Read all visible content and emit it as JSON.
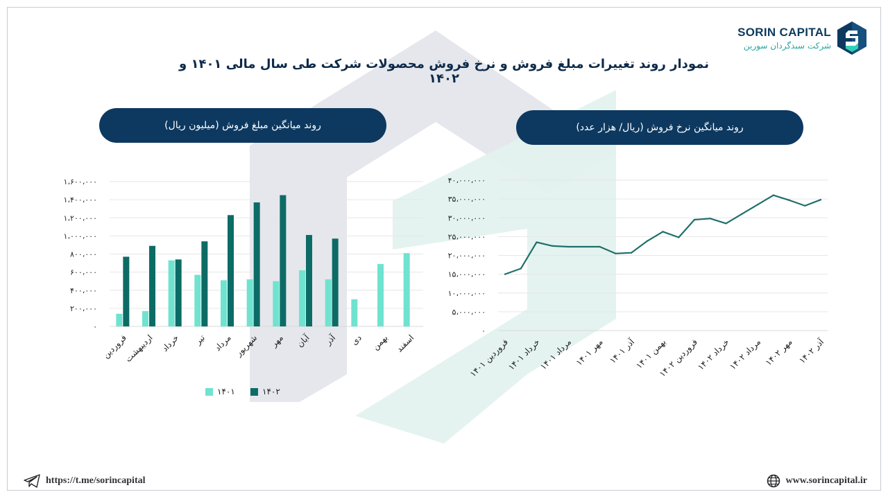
{
  "brand": {
    "name_en": "SORIN CAPITAL",
    "name_fa": "شرکت سبدگردان سورین"
  },
  "title": "نمودار روند تغییرات مبلغ فروش و نرخ فروش محصولات شرکت طی سال مالی ۱۴۰۱ و ۱۴۰۲",
  "footer": {
    "telegram": "https://t.me/sorincapital",
    "website": "www.sorincapital.ir"
  },
  "colors": {
    "navy": "#0d3960",
    "series_1401": "#6fe3cf",
    "series_1402": "#0d6b66",
    "line": "#1f6f6b",
    "watermark_gray": "#e2e4ea",
    "watermark_green": "#e3f2ee"
  },
  "icons": {
    "footer_left": "telegram-icon",
    "footer_right": "globe-icon"
  },
  "chart_data": [
    {
      "type": "bar",
      "title": "روند میانگین مبلغ فروش (میلیون ریال)",
      "categories": [
        "فروردین",
        "اردیبهشت",
        "خرداد",
        "تیر",
        "مرداد",
        "شهریور",
        "مهر",
        "آبان",
        "آذر",
        "دی",
        "بهمن",
        "اسفند"
      ],
      "series": [
        {
          "name": "۱۴۰۱",
          "values": [
            140000,
            170000,
            730000,
            570000,
            510000,
            520000,
            500000,
            620000,
            520000,
            300000,
            690000,
            810000
          ]
        },
        {
          "name": "۱۴۰۲",
          "values": [
            770000,
            890000,
            740000,
            940000,
            1230000,
            1370000,
            1450000,
            1010000,
            970000,
            null,
            null,
            null
          ]
        }
      ],
      "ylim": [
        0,
        1600000
      ],
      "yticks": [
        "۰",
        "۲۰۰،۰۰۰",
        "۴۰۰،۰۰۰",
        "۶۰۰،۰۰۰",
        "۸۰۰،۰۰۰",
        "۱،۰۰۰،۰۰۰",
        "۱،۲۰۰،۰۰۰",
        "۱،۴۰۰،۰۰۰",
        "۱،۶۰۰،۰۰۰"
      ],
      "grid": true,
      "legend": "bottom"
    },
    {
      "type": "line",
      "title": "روند میانگین نرخ فروش (ریال/ هزار عدد)",
      "x": [
        "فروردین ۱۴۰۱",
        "اردیبهشت ۱۴۰۱",
        "خرداد ۱۴۰۱",
        "تیر ۱۴۰۱",
        "مرداد ۱۴۰۱",
        "شهریور ۱۴۰۱",
        "مهر ۱۴۰۱",
        "آبان ۱۴۰۱",
        "آذر ۱۴۰۱",
        "دی ۱۴۰۱",
        "بهمن ۱۴۰۱",
        "اسفند ۱۴۰۱",
        "فروردین ۱۴۰۲",
        "اردیبهشت ۱۴۰۲",
        "خرداد ۱۴۰۲",
        "تیر ۱۴۰۲",
        "مرداد ۱۴۰۲",
        "شهریور ۱۴۰۲",
        "مهر ۱۴۰۲",
        "آبان ۱۴۰۲",
        "آذر ۱۴۰۲"
      ],
      "xticks": [
        "فروردین ۱۴۰۱",
        "خرداد ۱۴۰۱",
        "مرداد ۱۴۰۱",
        "مهر ۱۴۰۱",
        "آذر ۱۴۰۱",
        "بهمن ۱۴۰۱",
        "فروردین ۱۴۰۲",
        "خرداد ۱۴۰۲",
        "مرداد ۱۴۰۲",
        "مهر ۱۴۰۲",
        "آذر ۱۴۰۲"
      ],
      "values": [
        15000000,
        16500000,
        23500000,
        22500000,
        22300000,
        22300000,
        22300000,
        20500000,
        20700000,
        23800000,
        26300000,
        24800000,
        29500000,
        29800000,
        28500000,
        31000000,
        33500000,
        36000000,
        34700000,
        33200000,
        34800000
      ],
      "ylim": [
        0,
        40000000
      ],
      "yticks": [
        "۰",
        "۵،۰۰۰،۰۰۰",
        "۱۰،۰۰۰،۰۰۰",
        "۱۵،۰۰۰،۰۰۰",
        "۲۰،۰۰۰،۰۰۰",
        "۲۵،۰۰۰،۰۰۰",
        "۳۰،۰۰۰،۰۰۰",
        "۳۵،۰۰۰،۰۰۰",
        "۴۰،۰۰۰،۰۰۰"
      ],
      "grid": true
    }
  ]
}
